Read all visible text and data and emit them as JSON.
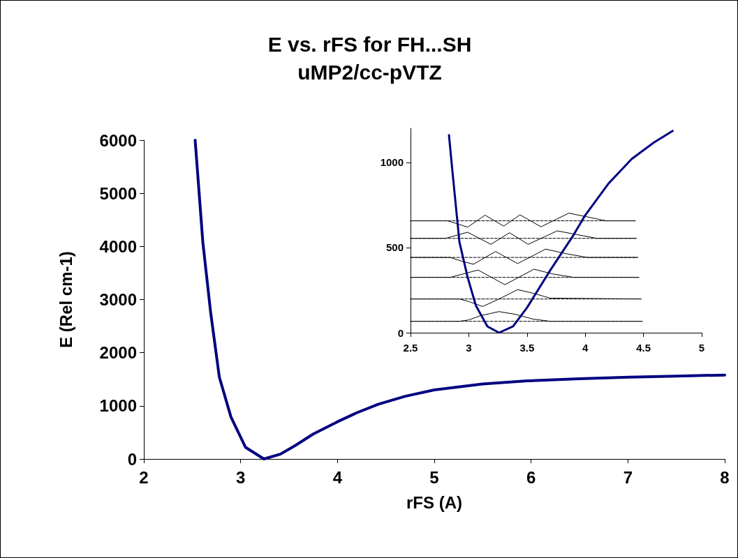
{
  "chart_data": [
    {
      "type": "line",
      "title": "E vs. rFS for FH...SH",
      "subtitle": "uMP2/cc-pVTZ",
      "xlabel": "rFS (A)",
      "ylabel": "E (Rel cm-1)",
      "xlim": [
        2,
        8
      ],
      "xticks": [
        2,
        3,
        4,
        5,
        6,
        7,
        8
      ],
      "ylim": [
        0,
        6000
      ],
      "yticks": [
        0,
        1000,
        2000,
        3000,
        4000,
        5000,
        6000
      ],
      "marker": "none",
      "line_style": "solid",
      "series": [
        {
          "color": "#000080",
          "x": [
            2.53,
            2.61,
            2.69,
            2.78,
            2.9,
            3.05,
            3.24,
            3.41,
            3.57,
            3.75,
            4.0,
            4.2,
            4.42,
            4.7,
            5.0,
            5.5,
            5.96,
            6.5,
            7.01,
            7.5,
            8.0
          ],
          "values": [
            6000,
            4070,
            2760,
            1540,
            790,
            220,
            0,
            90,
            260,
            470,
            700,
            870,
            1030,
            1180,
            1300,
            1410,
            1470,
            1510,
            1540,
            1560,
            1580
          ]
        }
      ]
    },
    {
      "type": "line",
      "xlim": [
        2.5,
        5
      ],
      "xticks": [
        2.5,
        3,
        3.5,
        4,
        4.5,
        5
      ],
      "ylim": [
        0,
        1200
      ],
      "yticks": [
        0,
        500,
        1000
      ],
      "marker": "none",
      "series": [
        {
          "color": "#000000",
          "line_style": "dashed",
          "x": [
            2.5,
            4.49
          ],
          "values": [
            67,
            67
          ]
        },
        {
          "color": "#000000",
          "line_style": "dashed",
          "x": [
            2.5,
            4.48
          ],
          "values": [
            198,
            198
          ]
        },
        {
          "color": "#000000",
          "line_style": "dashed",
          "x": [
            2.5,
            4.46
          ],
          "values": [
            325,
            325
          ]
        },
        {
          "color": "#000000",
          "line_style": "dashed",
          "x": [
            2.5,
            4.45
          ],
          "values": [
            442,
            442
          ]
        },
        {
          "color": "#000000",
          "line_style": "dashed",
          "x": [
            2.5,
            4.44
          ],
          "values": [
            554,
            554
          ]
        },
        {
          "color": "#000000",
          "line_style": "dashed",
          "x": [
            2.5,
            4.43
          ],
          "values": [
            657,
            657
          ]
        },
        {
          "color": "#000000",
          "line_style": "solid",
          "x": [
            2.5,
            2.92,
            3.0,
            3.1,
            3.26,
            3.4,
            3.55,
            3.7,
            4.49
          ],
          "values": [
            67,
            67,
            75,
            100,
            124,
            108,
            80,
            67,
            67
          ]
        },
        {
          "color": "#000000",
          "line_style": "solid",
          "x": [
            2.5,
            2.92,
            3.0,
            3.12,
            3.26,
            3.42,
            3.55,
            3.7,
            4.48
          ],
          "values": [
            198,
            198,
            183,
            154,
            198,
            253,
            232,
            203,
            198
          ]
        },
        {
          "color": "#000000",
          "line_style": "solid",
          "x": [
            2.5,
            2.84,
            2.98,
            3.08,
            3.31,
            3.56,
            3.72,
            3.9,
            4.46
          ],
          "values": [
            325,
            325,
            350,
            368,
            282,
            373,
            345,
            325,
            325
          ]
        },
        {
          "color": "#000000",
          "line_style": "solid",
          "x": [
            2.5,
            2.84,
            2.94,
            3.04,
            3.23,
            3.42,
            3.66,
            3.85,
            4.02,
            4.45
          ],
          "values": [
            442,
            442,
            420,
            402,
            477,
            406,
            491,
            462,
            442,
            442
          ]
        },
        {
          "color": "#000000",
          "line_style": "solid",
          "x": [
            2.5,
            2.8,
            2.99,
            3.19,
            3.35,
            3.51,
            3.76,
            4.1,
            4.44
          ],
          "values": [
            554,
            554,
            590,
            519,
            587,
            519,
            598,
            554,
            554
          ]
        },
        {
          "color": "#000000",
          "line_style": "solid",
          "x": [
            2.5,
            2.82,
            2.99,
            3.14,
            3.3,
            3.44,
            3.62,
            3.86,
            4.18,
            4.43
          ],
          "values": [
            657,
            657,
            620,
            690,
            626,
            692,
            622,
            702,
            657,
            657
          ]
        },
        {
          "color": "#000080",
          "line_style": "solid",
          "x": [
            2.83,
            2.86,
            2.92,
            2.99,
            3.06,
            3.16,
            3.26,
            3.38,
            3.5,
            3.7,
            3.9,
            4.0,
            4.2,
            4.4,
            4.59,
            4.75
          ],
          "values": [
            1160,
            945,
            532,
            326,
            161,
            37,
            0,
            37,
            147,
            367,
            574,
            690,
            876,
            1021,
            1117,
            1185
          ]
        }
      ]
    }
  ]
}
